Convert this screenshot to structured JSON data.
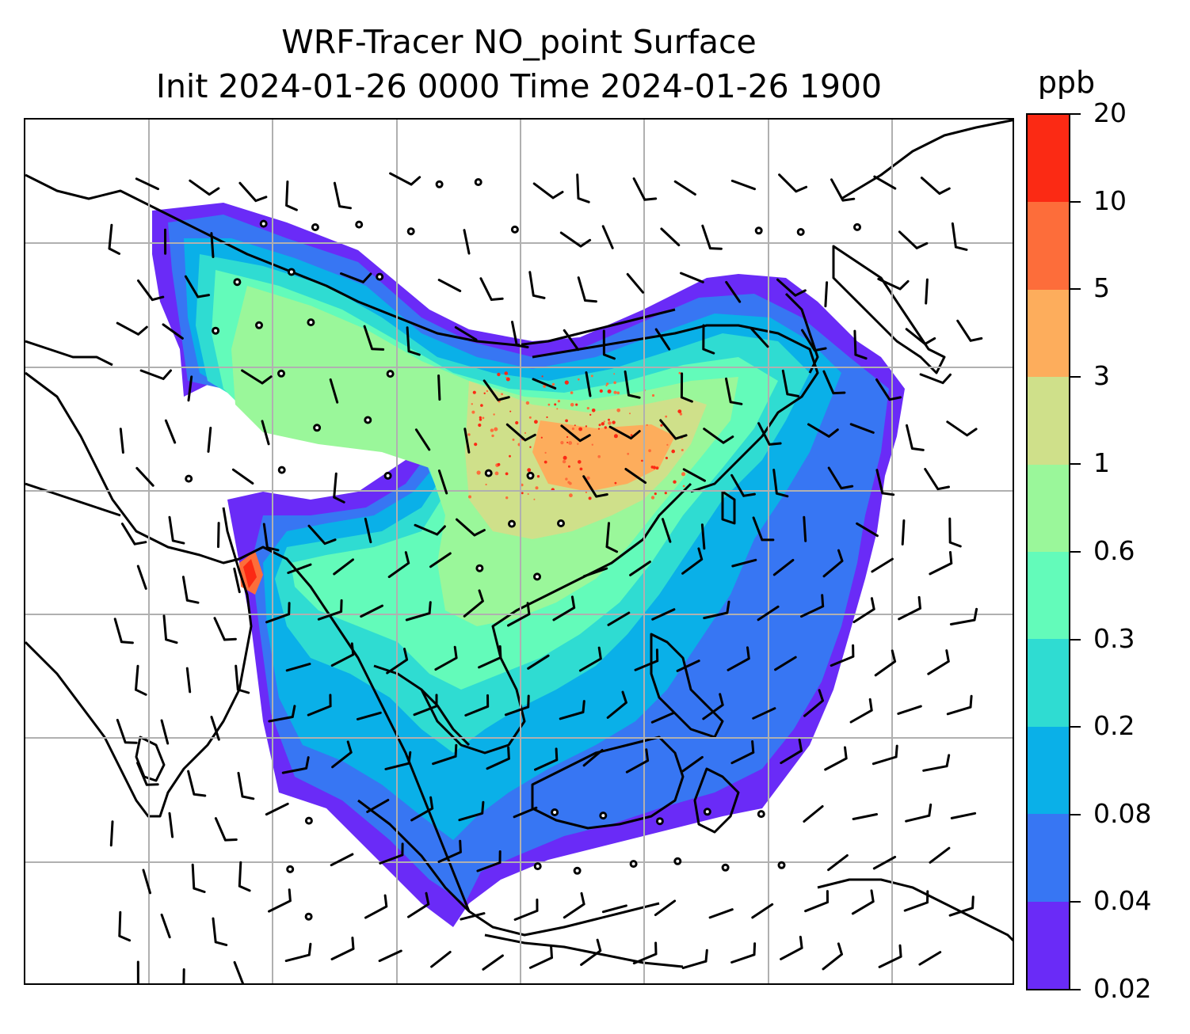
{
  "title": {
    "line1": "WRF-Tracer NO_point Surface",
    "line2": "Init 2024-01-26 0000 Time 2024-01-26 1900"
  },
  "colorbar": {
    "unit": "ppb",
    "levels": [
      "0.02",
      "0.04",
      "0.08",
      "0.2",
      "0.3",
      "0.6",
      "1",
      "3",
      "5",
      "10",
      "20"
    ],
    "colors": [
      "#6a2bf7",
      "#3776f3",
      "#0ab0e8",
      "#2fdcd2",
      "#63fbba",
      "#9af79a",
      "#cfe08a",
      "#fdad5c",
      "#fd6d3a",
      "#fb2a14"
    ]
  },
  "map": {
    "background": "#ffffff",
    "gridline_color": "#b0b0b0",
    "coastline_color": "#000000",
    "wind_barb_color": "#000000"
  }
}
